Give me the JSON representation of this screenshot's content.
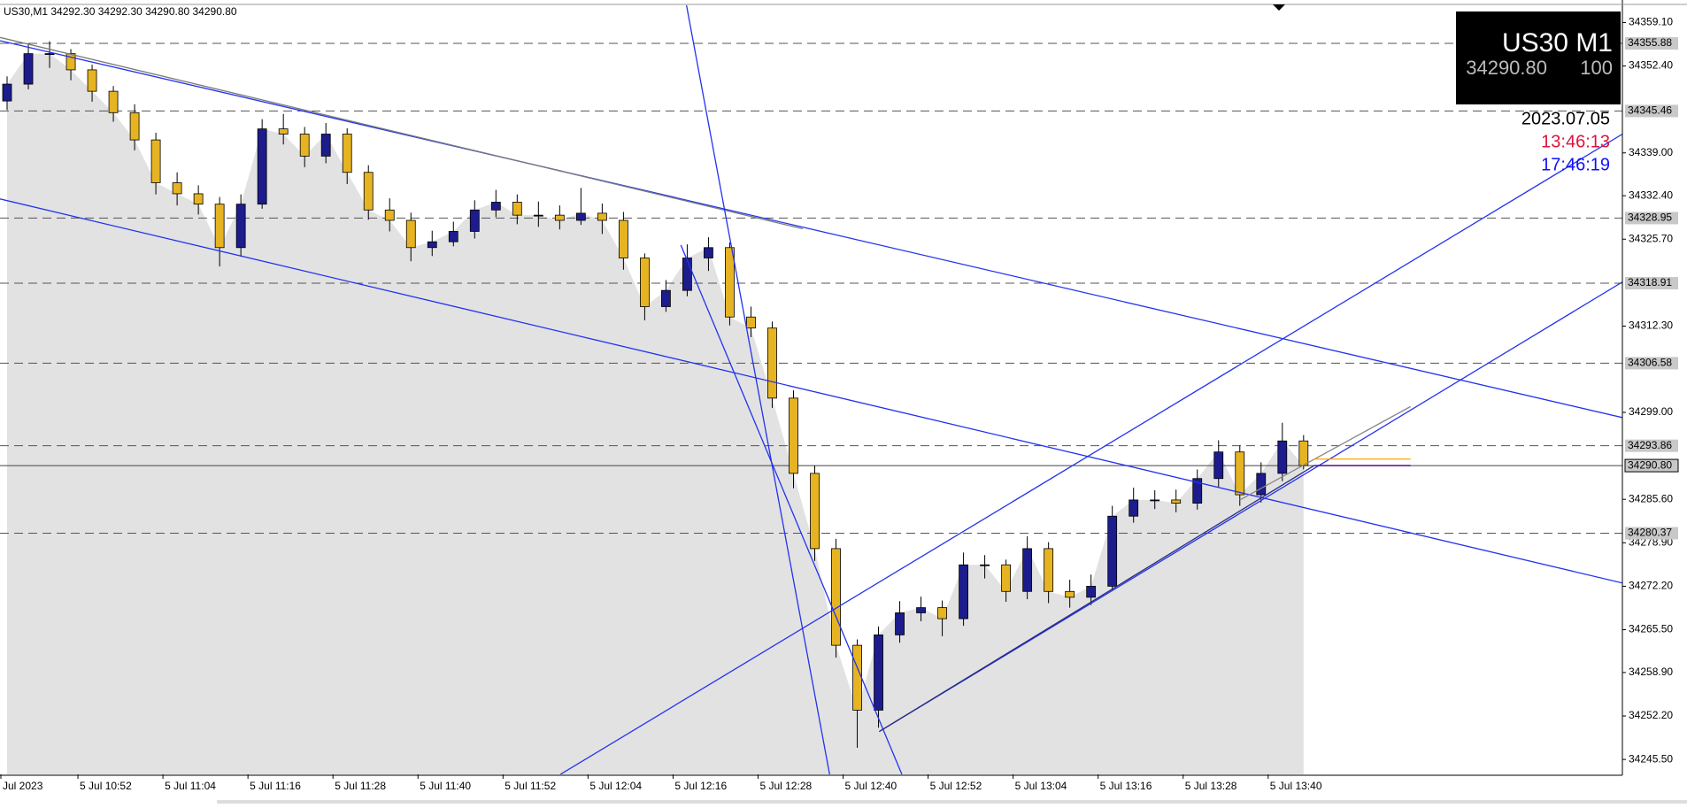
{
  "chart_data": {
    "type": "candlestick",
    "header": "US30,M1  34292.30 34292.30 34290.80 34290.80",
    "symbol_box": {
      "title": "US30  M1",
      "price": "34290.80",
      "spread": "100"
    },
    "date": "2023.07.05",
    "time_local": "13:46:13",
    "time_server": "17:46:19",
    "xlim": [
      -11,
      218
    ],
    "ylim": [
      34243.2,
      34361.75
    ],
    "xticks": [
      {
        "value": -11,
        "label": "Jul 2023"
      },
      {
        "value": 0,
        "label": "5 Jul 10:52"
      },
      {
        "value": 12,
        "label": "5 Jul 11:04"
      },
      {
        "value": 24,
        "label": "5 Jul 11:16"
      },
      {
        "value": 36,
        "label": "5 Jul 11:28"
      },
      {
        "value": 48,
        "label": "5 Jul 11:40"
      },
      {
        "value": 60,
        "label": "5 Jul 11:52"
      },
      {
        "value": 72,
        "label": "5 Jul 12:04"
      },
      {
        "value": 84,
        "label": "5 Jul 12:16"
      },
      {
        "value": 96,
        "label": "5 Jul 12:28"
      },
      {
        "value": 108,
        "label": "5 Jul 12:40"
      },
      {
        "value": 120,
        "label": "5 Jul 12:52"
      },
      {
        "value": 132,
        "label": "5 Jul 13:04"
      },
      {
        "value": 144,
        "label": "5 Jul 13:16"
      },
      {
        "value": 156,
        "label": "5 Jul 13:28"
      },
      {
        "value": 168,
        "label": "5 Jul 13:40"
      }
    ],
    "yticks": [
      {
        "value": 34359.1,
        "label": "34359.10"
      },
      {
        "value": 34352.4,
        "label": "34352.40"
      },
      {
        "value": 34339.0,
        "label": "34339.00"
      },
      {
        "value": 34332.4,
        "label": "34332.40"
      },
      {
        "value": 34325.7,
        "label": "34325.70"
      },
      {
        "value": 34312.3,
        "label": "34312.30"
      },
      {
        "value": 34299.0,
        "label": "34299.00"
      },
      {
        "value": 34285.6,
        "label": "34285.60"
      },
      {
        "value": 34278.9,
        "label": "34278.90"
      },
      {
        "value": 34272.2,
        "label": "34272.20"
      },
      {
        "value": 34265.5,
        "label": "34265.50"
      },
      {
        "value": 34258.9,
        "label": "34258.90"
      },
      {
        "value": 34252.2,
        "label": "34252.20"
      },
      {
        "value": 34245.5,
        "label": "34245.50"
      }
    ],
    "levels": [
      34355.88,
      34345.46,
      34328.95,
      34318.91,
      34306.58,
      34293.86,
      34280.37
    ],
    "bid": {
      "value": 34290.8,
      "label": "34290.80"
    },
    "bear_color": "#e6b422",
    "bull_color": "#1c1c8c",
    "area_color": "#e2e2e2",
    "x": [
      -10,
      -7,
      -4,
      -1,
      2,
      5,
      8,
      11,
      14,
      17,
      20,
      23,
      26,
      29,
      32,
      35,
      38,
      41,
      44,
      47,
      50,
      53,
      56,
      59,
      62,
      65,
      68,
      71,
      74,
      77,
      80,
      83,
      86,
      89,
      92,
      95,
      98,
      101,
      104,
      107,
      110,
      113,
      116,
      119,
      122,
      125,
      128,
      131,
      134,
      137,
      140,
      143,
      146,
      149,
      152,
      155,
      158,
      161,
      164,
      167,
      170,
      173
    ],
    "candles": [
      [
        34347.0,
        34350.8,
        34345.6,
        34349.6
      ],
      [
        34349.6,
        34355.9,
        34348.8,
        34354.3
      ],
      [
        34354.3,
        34356.2,
        34352.1,
        34354.3
      ],
      [
        34354.3,
        34355.0,
        34350.2,
        34351.8
      ],
      [
        34351.8,
        34352.6,
        34346.9,
        34348.5
      ],
      [
        34348.5,
        34349.3,
        34343.8,
        34345.2
      ],
      [
        34345.2,
        34346.5,
        34339.4,
        34341.0
      ],
      [
        34341.0,
        34342.1,
        34332.6,
        34334.4
      ],
      [
        34334.4,
        34336.0,
        34330.9,
        34332.7
      ],
      [
        34332.7,
        34334.0,
        34329.5,
        34331.1
      ],
      [
        34331.1,
        34332.2,
        34321.5,
        34324.4
      ],
      [
        34324.4,
        34332.6,
        34323.0,
        34331.1
      ],
      [
        34331.1,
        34344.2,
        34330.4,
        34342.7
      ],
      [
        34342.7,
        34345.0,
        34340.3,
        34341.9
      ],
      [
        34341.9,
        34343.0,
        34336.8,
        34338.5
      ],
      [
        34338.5,
        34343.6,
        34337.4,
        34341.9
      ],
      [
        34341.9,
        34342.8,
        34334.2,
        34336.0
      ],
      [
        34336.0,
        34337.1,
        34328.7,
        34330.2
      ],
      [
        34330.2,
        34332.0,
        34326.9,
        34328.6
      ],
      [
        34328.6,
        34329.8,
        34322.3,
        34324.4
      ],
      [
        34324.4,
        34327.0,
        34323.1,
        34325.3
      ],
      [
        34325.3,
        34328.4,
        34324.6,
        34326.9
      ],
      [
        34326.9,
        34331.7,
        34325.8,
        34330.2
      ],
      [
        34330.2,
        34333.3,
        34329.1,
        34331.4
      ],
      [
        34331.4,
        34332.6,
        34328.0,
        34329.4
      ],
      [
        34329.4,
        34331.5,
        34327.6,
        34329.4
      ],
      [
        34329.4,
        34330.9,
        34327.2,
        34328.6
      ],
      [
        34328.6,
        34333.6,
        34327.9,
        34329.7
      ],
      [
        34329.7,
        34331.2,
        34326.5,
        34328.6
      ],
      [
        34328.6,
        34329.9,
        34321.0,
        34322.8
      ],
      [
        34322.8,
        34323.5,
        34313.2,
        34315.3
      ],
      [
        34315.3,
        34319.4,
        34314.5,
        34317.8
      ],
      [
        34317.8,
        34324.9,
        34316.9,
        34322.8
      ],
      [
        34322.8,
        34326.0,
        34320.8,
        34324.4
      ],
      [
        34324.4,
        34325.2,
        34312.4,
        34313.7
      ],
      [
        34313.7,
        34315.3,
        34310.6,
        34312.0
      ],
      [
        34312.0,
        34313.0,
        34299.7,
        34301.2
      ],
      [
        34301.2,
        34302.4,
        34287.3,
        34289.6
      ],
      [
        34289.6,
        34290.8,
        34276.1,
        34278.0
      ],
      [
        34278.0,
        34279.5,
        34261.2,
        34263.1
      ],
      [
        34263.1,
        34264.0,
        34247.3,
        34253.1
      ],
      [
        34253.1,
        34266.0,
        34250.4,
        34264.7
      ],
      [
        34264.7,
        34269.9,
        34263.5,
        34268.1
      ],
      [
        34268.1,
        34270.6,
        34266.8,
        34268.9
      ],
      [
        34268.9,
        34270.0,
        34264.5,
        34267.2
      ],
      [
        34267.2,
        34277.4,
        34266.1,
        34275.5
      ],
      [
        34275.5,
        34277.0,
        34273.4,
        34275.5
      ],
      [
        34275.5,
        34276.3,
        34269.8,
        34271.4
      ],
      [
        34271.4,
        34279.9,
        34270.2,
        34278.0
      ],
      [
        34278.0,
        34279.0,
        34269.6,
        34271.4
      ],
      [
        34271.4,
        34273.2,
        34268.9,
        34270.5
      ],
      [
        34270.5,
        34274.0,
        34269.3,
        34272.2
      ],
      [
        34272.2,
        34284.6,
        34271.5,
        34283.0
      ],
      [
        34283.0,
        34287.4,
        34282.0,
        34285.5
      ],
      [
        34285.5,
        34287.0,
        34284.1,
        34285.5
      ],
      [
        34285.5,
        34287.1,
        34283.6,
        34285.0
      ],
      [
        34285.0,
        34290.2,
        34284.0,
        34288.8
      ],
      [
        34288.8,
        34294.7,
        34287.5,
        34292.9
      ],
      [
        34292.9,
        34293.9,
        34284.6,
        34286.3
      ],
      [
        34286.3,
        34291.3,
        34285.1,
        34289.6
      ],
      [
        34289.6,
        34297.4,
        34288.4,
        34294.6
      ],
      [
        34294.6,
        34295.5,
        34290.2,
        34290.8
      ]
    ],
    "lines": [
      {
        "x": [
          -11,
          218
        ],
        "y": [
          34356.3,
          34298.2
        ],
        "color": "#2233ee"
      },
      {
        "x": [
          -11,
          102.3
        ],
        "y": [
          34356.8,
          34327.3
        ],
        "color": "#7a7a7a"
      },
      {
        "x": [
          -11,
          218
        ],
        "y": [
          34331.9,
          34272.7
        ],
        "color": "#2233ee"
      },
      {
        "x": [
          85.9,
          106.1
        ],
        "y": [
          34361.75,
          34243.2
        ],
        "color": "#2233ee"
      },
      {
        "x": [
          85.1,
          116.3
        ],
        "y": [
          34324.8,
          34243.2
        ],
        "color": "#2233ee"
      },
      {
        "x": [
          68.1,
          218
        ],
        "y": [
          34243.2,
          34341.9
        ],
        "color": "#2233ee"
      },
      {
        "x": [
          113.1,
          218
        ],
        "y": [
          34249.8,
          34319.1
        ],
        "color": "#2233ee"
      },
      {
        "x": [
          113.1,
          174.5
        ],
        "y": [
          34249.8,
          34290.8
        ],
        "color": "#2a2a7a"
      },
      {
        "x": [
          164,
          188.1
        ],
        "y": [
          34285.5,
          34299.9
        ],
        "color": "#888888"
      },
      {
        "x": [
          174.5,
          188.1
        ],
        "y": [
          34291.8,
          34291.8
        ],
        "color": "#ffa500"
      },
      {
        "x": [
          174.5,
          188.1
        ],
        "y": [
          34290.8,
          34290.8
        ],
        "color": "#4b0082"
      }
    ]
  }
}
